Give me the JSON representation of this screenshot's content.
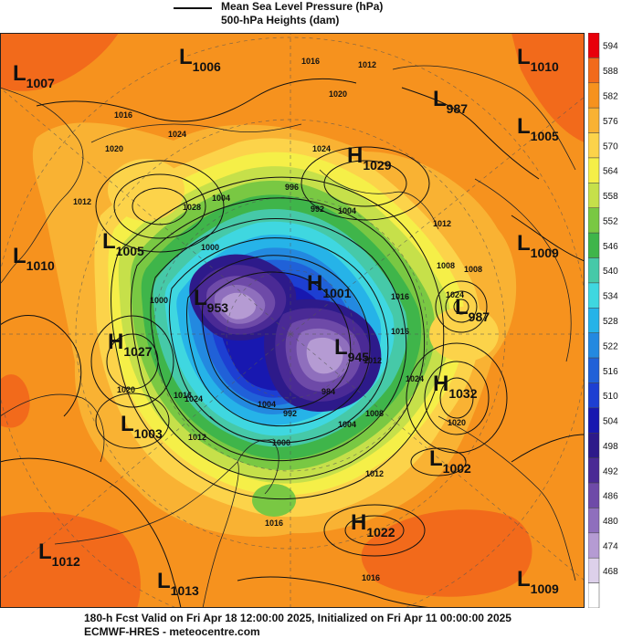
{
  "header": {
    "legend_line_label": "Mean Sea Level Pressure (hPa)",
    "legend_fill_label": "500-hPa Heights (dam)"
  },
  "colorbar": {
    "levels": [
      {
        "label": "594",
        "color": "#e8000b"
      },
      {
        "label": "588",
        "color": "#f26a1b"
      },
      {
        "label": "582",
        "color": "#f6921e"
      },
      {
        "label": "576",
        "color": "#f9b233"
      },
      {
        "label": "570",
        "color": "#fcd34a"
      },
      {
        "label": "564",
        "color": "#f5ef48"
      },
      {
        "label": "558",
        "color": "#c6e04a"
      },
      {
        "label": "552",
        "color": "#79c843"
      },
      {
        "label": "546",
        "color": "#3fb54a"
      },
      {
        "label": "540",
        "color": "#46c9a8"
      },
      {
        "label": "534",
        "color": "#3fd7e0"
      },
      {
        "label": "528",
        "color": "#26b3e8"
      },
      {
        "label": "522",
        "color": "#2389e0"
      },
      {
        "label": "516",
        "color": "#2061d8"
      },
      {
        "label": "510",
        "color": "#1d3fd2"
      },
      {
        "label": "504",
        "color": "#1818b0"
      },
      {
        "label": "498",
        "color": "#2d1a8a"
      },
      {
        "label": "492",
        "color": "#4a2a95"
      },
      {
        "label": "486",
        "color": "#6e4aa8"
      },
      {
        "label": "480",
        "color": "#8f6fbd"
      },
      {
        "label": "474",
        "color": "#b59bd3"
      },
      {
        "label": "468",
        "color": "#ddd0ea"
      },
      {
        "label": "",
        "color": "#ffffff"
      }
    ]
  },
  "pressure_centers": [
    {
      "type": "L",
      "value": "1007"
    },
    {
      "type": "L",
      "value": "1006"
    },
    {
      "type": "L",
      "value": "1010"
    },
    {
      "type": "L",
      "value": "987"
    },
    {
      "type": "L",
      "value": "1005"
    },
    {
      "type": "H",
      "value": "1029"
    },
    {
      "type": "L",
      "value": "1005"
    },
    {
      "type": "L",
      "value": "1010"
    },
    {
      "type": "L",
      "value": "1009"
    },
    {
      "type": "L",
      "value": "953"
    },
    {
      "type": "H",
      "value": "1001"
    },
    {
      "type": "L",
      "value": "987"
    },
    {
      "type": "H",
      "value": "1027"
    },
    {
      "type": "L",
      "value": "945"
    },
    {
      "type": "H",
      "value": "1032"
    },
    {
      "type": "L",
      "value": "1003"
    },
    {
      "type": "L",
      "value": "1002"
    },
    {
      "type": "H",
      "value": "1022"
    },
    {
      "type": "L",
      "value": "1012"
    },
    {
      "type": "L",
      "value": "1013"
    },
    {
      "type": "L",
      "value": "1009"
    }
  ],
  "isobar_labels": [
    "1016",
    "1012",
    "1020",
    "1016",
    "1020",
    "1024",
    "1028",
    "1024",
    "1012",
    "996",
    "992",
    "1004",
    "1008",
    "1012",
    "1004",
    "1000",
    "1024",
    "1008",
    "1016",
    "1016",
    "1000",
    "1020",
    "1024",
    "1024",
    "1012",
    "1020",
    "1016",
    "1004",
    "992",
    "984",
    "1008",
    "1012",
    "1016",
    "1016",
    "1000",
    "1004",
    "1012"
  ],
  "footer": {
    "valid_line": "180-h Fcst Valid on Fri Apr 18 12:00:00 2025, Initialized on Fri Apr 11 00:00:00 2025",
    "source_line": "ECMWF-HRES - meteocentre.com"
  }
}
